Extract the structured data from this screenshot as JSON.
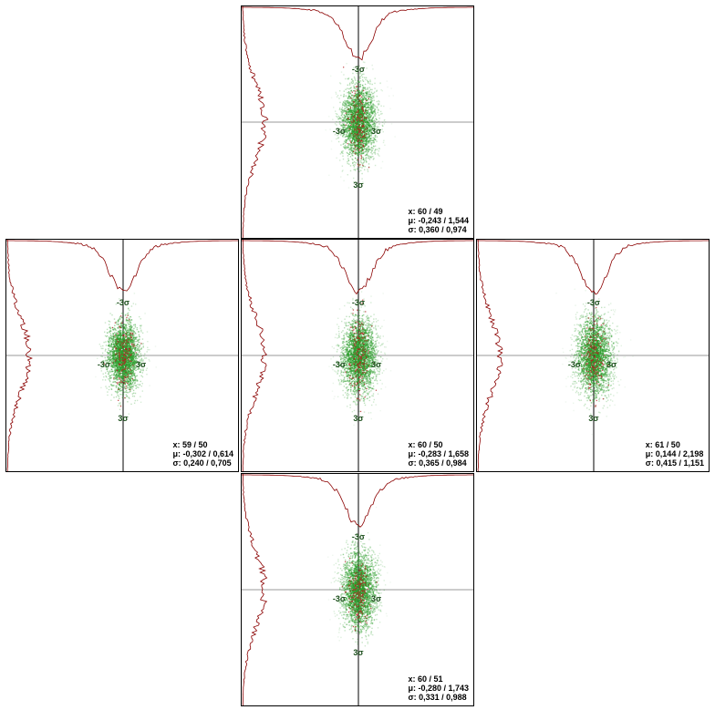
{
  "sigma_labels": {
    "neg": "-3σ",
    "pos": "3σ"
  },
  "colors": {
    "border": "#000000",
    "hist": "#8b0000",
    "scatter_green": "#2e9e2e",
    "scatter_red": "#b22222",
    "crosshair": "#999999",
    "axis": "#000000"
  },
  "panels": [
    {
      "id": "top",
      "x_label": "x: 60 / 49",
      "mu_label": "μ: -0,243 / 1,544",
      "sigma_label": "σ: 0,360 / 0,974"
    },
    {
      "id": "left",
      "x_label": "x: 59 / 50",
      "mu_label": "μ: -0,302 / 0,614",
      "sigma_label": "σ: 0,240 / 0,705"
    },
    {
      "id": "center",
      "x_label": "x: 60 / 50",
      "mu_label": "μ: -0,283 / 1,658",
      "sigma_label": "σ: 0,365 / 0,984"
    },
    {
      "id": "right",
      "x_label": "x: 61 / 50",
      "mu_label": "μ: 0,144 / 2,198",
      "sigma_label": "σ: 0,415 / 1,151"
    },
    {
      "id": "bottom",
      "x_label": "x: 60 / 51",
      "mu_label": "μ: -0,280 / 1,743",
      "sigma_label": "σ: 0,331 / 0,988"
    }
  ],
  "chart_data": [
    {
      "type": "scatter",
      "panel": "top",
      "x": [
        60,
        49
      ],
      "mu": [
        -0.243,
        1.544
      ],
      "sigma": [
        0.36,
        0.974
      ]
    },
    {
      "type": "scatter",
      "panel": "left",
      "x": [
        59,
        50
      ],
      "mu": [
        -0.302,
        0.614
      ],
      "sigma": [
        0.24,
        0.705
      ]
    },
    {
      "type": "scatter",
      "panel": "center",
      "x": [
        60,
        50
      ],
      "mu": [
        -0.283,
        1.658
      ],
      "sigma": [
        0.365,
        0.984
      ]
    },
    {
      "type": "scatter",
      "panel": "right",
      "x": [
        61,
        50
      ],
      "mu": [
        0.144,
        2.198
      ],
      "sigma": [
        0.415,
        1.151
      ]
    },
    {
      "type": "scatter",
      "panel": "bottom",
      "x": [
        60,
        51
      ],
      "mu": [
        -0.28,
        1.743
      ],
      "sigma": [
        0.331,
        0.988
      ]
    }
  ]
}
